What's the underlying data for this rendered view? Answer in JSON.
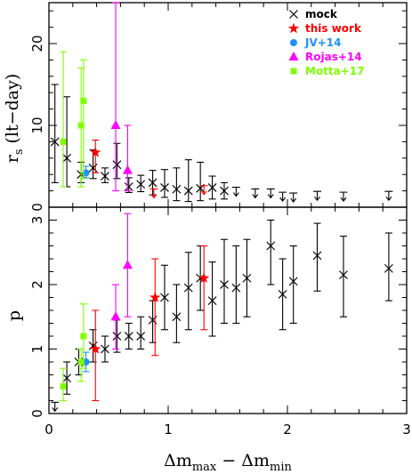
{
  "chart_data": {
    "type": "scatter",
    "x_label": "Δm",
    "x_label_sub1": "max",
    "x_label_mid": " − Δm",
    "x_label_sub2": "min",
    "x_range": [
      0,
      3
    ],
    "x_ticks": [
      "0",
      "1",
      "2",
      "3"
    ],
    "legend_position": "top-right",
    "panels": [
      {
        "name": "rs",
        "y_label": "r",
        "y_label_sub": "s",
        "y_label_unit": " (lt−day)",
        "y_range": [
          0,
          25
        ],
        "y_ticks": [
          "0",
          "10",
          "20"
        ],
        "y_tick_values": [
          0,
          10,
          20
        ],
        "legend": [
          {
            "label": "mock",
            "color": "#000000",
            "marker": "cross"
          },
          {
            "label": "this work",
            "color": "#ff0000",
            "marker": "star"
          },
          {
            "label": "JV+14",
            "color": "#1e90ff",
            "marker": "circle"
          },
          {
            "label": "Rojas+14",
            "color": "#ff00ff",
            "marker": "triangle"
          },
          {
            "label": "Motta+17",
            "color": "#7fff00",
            "marker": "square"
          }
        ],
        "series": [
          {
            "name": "mock",
            "color": "#000000",
            "marker": "cross",
            "points": [
              {
                "x": 0.05,
                "y": 8.0,
                "lo": 3.0,
                "hi": 15.0
              },
              {
                "x": 0.15,
                "y": 6.0,
                "lo": 2.5,
                "hi": 13.5
              },
              {
                "x": 0.27,
                "y": 4.0,
                "lo": 3.0,
                "hi": 5.5
              },
              {
                "x": 0.37,
                "y": 4.8,
                "lo": 3.5,
                "hi": 7.0
              },
              {
                "x": 0.47,
                "y": 3.8,
                "lo": 3.0,
                "hi": 4.8
              },
              {
                "x": 0.57,
                "y": 5.2,
                "lo": 3.5,
                "hi": 7.8
              },
              {
                "x": 0.67,
                "y": 2.5,
                "lo": 1.8,
                "hi": 3.6
              },
              {
                "x": 0.77,
                "y": 2.8,
                "lo": 1.9,
                "hi": 3.9
              },
              {
                "x": 0.87,
                "y": 3.0,
                "lo": 1.5,
                "hi": 4.5
              },
              {
                "x": 0.97,
                "y": 2.4,
                "lo": 1.2,
                "hi": 4.6
              },
              {
                "x": 1.07,
                "y": 2.2,
                "lo": 0.8,
                "hi": 4.8
              },
              {
                "x": 1.17,
                "y": 2.0,
                "lo": 0.7,
                "hi": 5.8
              },
              {
                "x": 1.27,
                "y": 2.3,
                "lo": 0.8,
                "hi": 5.5
              },
              {
                "x": 1.37,
                "y": 2.4,
                "lo": 1.0,
                "hi": 3.8
              },
              {
                "x": 1.47,
                "y": 2.0,
                "lo": 1.0,
                "hi": 3.0
              }
            ]
          },
          {
            "name": "mock",
            "color": "#000000",
            "marker": "upper-limit",
            "points": [
              {
                "x": 1.57,
                "y": 2.0
              },
              {
                "x": 1.73,
                "y": 1.8
              },
              {
                "x": 1.86,
                "y": 1.8
              },
              {
                "x": 1.96,
                "y": 1.4
              },
              {
                "x": 2.05,
                "y": 1.3
              },
              {
                "x": 2.25,
                "y": 1.5
              },
              {
                "x": 2.47,
                "y": 1.4
              },
              {
                "x": 2.85,
                "y": 1.5
              }
            ]
          },
          {
            "name": "this work",
            "color": "#ff0000",
            "marker": "star",
            "points": [
              {
                "x": 0.39,
                "y": 6.7,
                "lo": 4.2,
                "hi": 8.2
              }
            ]
          },
          {
            "name": "this work",
            "color": "#ff0000",
            "marker": "upper-limit-open",
            "points": [
              {
                "x": 0.88,
                "y": 1.8
              },
              {
                "x": 1.3,
                "y": 2.2
              }
            ]
          },
          {
            "name": "JV+14",
            "color": "#1e90ff",
            "marker": "circle",
            "points": [
              {
                "x": 0.31,
                "y": 4.2,
                "lo": 3.6,
                "hi": 5.0
              }
            ]
          },
          {
            "name": "Rojas+14",
            "color": "#ff00ff",
            "marker": "triangle",
            "points": [
              {
                "x": 0.56,
                "y": 10.0,
                "lo": 2.0,
                "hi": 25.0
              },
              {
                "x": 0.66,
                "y": 4.5,
                "lo": 2.0,
                "hi": 10.0
              }
            ]
          },
          {
            "name": "Motta+17",
            "color": "#7fff00",
            "marker": "square",
            "points": [
              {
                "x": 0.12,
                "y": 8.0,
                "lo": 2.5,
                "hi": 19.0
              },
              {
                "x": 0.27,
                "y": 10.0,
                "lo": 2.5,
                "hi": 17.0
              },
              {
                "x": 0.29,
                "y": 13.0,
                "lo": 3.5,
                "hi": 18.0
              }
            ]
          }
        ]
      },
      {
        "name": "p",
        "y_label": "p",
        "y_range": [
          0,
          3.2
        ],
        "y_ticks": [
          "0",
          "1",
          "2",
          "3"
        ],
        "y_tick_values": [
          0,
          1,
          2,
          3
        ],
        "series": [
          {
            "name": "mock",
            "color": "#000000",
            "marker": "cross",
            "points": [
              {
                "x": 0.15,
                "y": 0.55,
                "lo": 0.3,
                "hi": 0.8
              },
              {
                "x": 0.25,
                "y": 0.8,
                "lo": 0.6,
                "hi": 1.0
              },
              {
                "x": 0.37,
                "y": 1.05,
                "lo": 0.8,
                "hi": 1.3
              },
              {
                "x": 0.47,
                "y": 1.0,
                "lo": 0.8,
                "hi": 1.2
              },
              {
                "x": 0.57,
                "y": 1.2,
                "lo": 0.95,
                "hi": 1.45
              },
              {
                "x": 0.67,
                "y": 1.2,
                "lo": 1.0,
                "hi": 1.4
              },
              {
                "x": 0.77,
                "y": 1.2,
                "lo": 1.0,
                "hi": 1.5
              },
              {
                "x": 0.87,
                "y": 1.45,
                "lo": 1.1,
                "hi": 1.75
              },
              {
                "x": 0.97,
                "y": 1.8,
                "lo": 1.3,
                "hi": 2.3
              },
              {
                "x": 1.07,
                "y": 1.5,
                "lo": 1.1,
                "hi": 2.0
              },
              {
                "x": 1.17,
                "y": 1.95,
                "lo": 1.3,
                "hi": 2.5
              },
              {
                "x": 1.27,
                "y": 2.1,
                "lo": 1.6,
                "hi": 2.6
              },
              {
                "x": 1.37,
                "y": 1.75,
                "lo": 1.2,
                "hi": 2.35
              },
              {
                "x": 1.47,
                "y": 2.0,
                "lo": 1.4,
                "hi": 2.7
              },
              {
                "x": 1.57,
                "y": 1.95,
                "lo": 1.4,
                "hi": 2.6
              },
              {
                "x": 1.66,
                "y": 2.1,
                "lo": 1.5,
                "hi": 2.7
              },
              {
                "x": 1.86,
                "y": 2.6,
                "lo": 2.0,
                "hi": 3.0
              },
              {
                "x": 1.96,
                "y": 1.85,
                "lo": 1.3,
                "hi": 2.4
              },
              {
                "x": 2.05,
                "y": 2.05,
                "lo": 1.4,
                "hi": 2.6
              },
              {
                "x": 2.25,
                "y": 2.45,
                "lo": 1.9,
                "hi": 2.95
              },
              {
                "x": 2.47,
                "y": 2.15,
                "lo": 1.5,
                "hi": 2.75
              },
              {
                "x": 2.85,
                "y": 2.25,
                "lo": 1.75,
                "hi": 2.8
              }
            ]
          },
          {
            "name": "mock",
            "color": "#000000",
            "marker": "upper-limit",
            "points": [
              {
                "x": 0.05,
                "y": 0.12
              }
            ]
          },
          {
            "name": "this work",
            "color": "#ff0000",
            "marker": "star",
            "points": [
              {
                "x": 0.39,
                "y": 1.0,
                "lo": 0.2,
                "hi": 1.6
              },
              {
                "x": 0.89,
                "y": 1.8,
                "lo": 0.9,
                "hi": 2.4
              },
              {
                "x": 1.3,
                "y": 2.1,
                "lo": 1.3,
                "hi": 2.6
              }
            ]
          },
          {
            "name": "JV+14",
            "color": "#1e90ff",
            "marker": "circle",
            "points": [
              {
                "x": 0.31,
                "y": 0.8,
                "lo": 0.65,
                "hi": 0.95
              }
            ]
          },
          {
            "name": "Rojas+14",
            "color": "#ff00ff",
            "marker": "triangle",
            "points": [
              {
                "x": 0.56,
                "y": 1.5,
                "lo": 1.0,
                "hi": 2.0
              },
              {
                "x": 0.66,
                "y": 2.3,
                "lo": 1.5,
                "hi": 3.1
              }
            ]
          },
          {
            "name": "Motta+17",
            "color": "#7fff00",
            "marker": "square",
            "points": [
              {
                "x": 0.12,
                "y": 0.42,
                "lo": 0.2,
                "hi": 0.7
              },
              {
                "x": 0.27,
                "y": 0.8,
                "lo": 0.5,
                "hi": 1.0
              },
              {
                "x": 0.29,
                "y": 1.2,
                "lo": 0.7,
                "hi": 1.7
              }
            ]
          }
        ]
      }
    ]
  }
}
